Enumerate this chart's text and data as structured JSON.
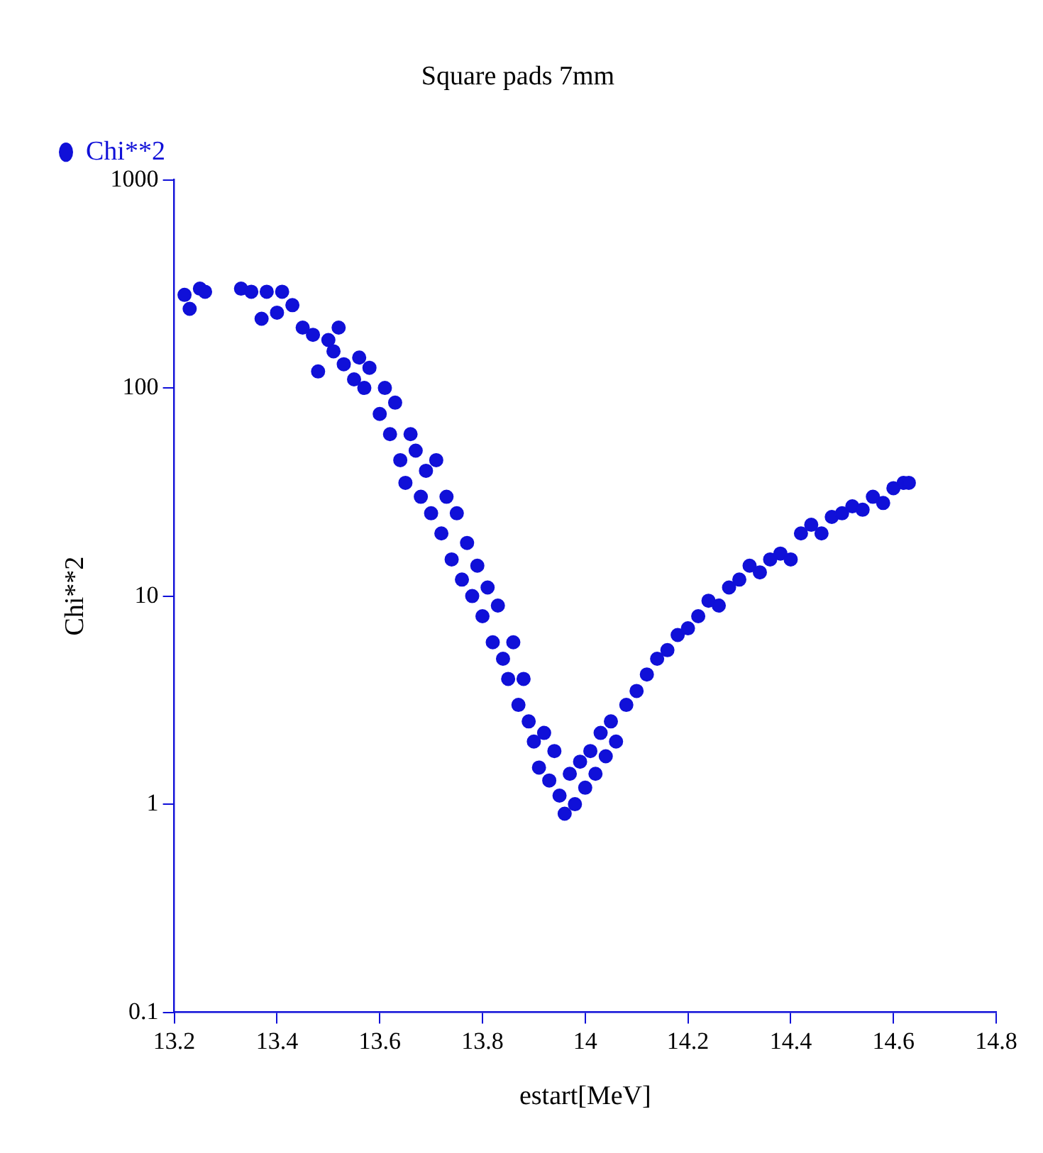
{
  "chart_data": {
    "type": "scatter",
    "title": "Square pads 7mm",
    "xlabel": "estart[MeV]",
    "ylabel": "Chi**2",
    "log": "y",
    "legend": "top left",
    "marker": "circle",
    "grid": false,
    "xlim": [
      13.2,
      14.8
    ],
    "xticks": [
      13.2,
      13.4,
      13.6,
      13.8,
      14,
      14.2,
      14.4,
      14.6,
      14.8
    ],
    "ylim": [
      0.1,
      1000
    ],
    "yticks": [
      0.1,
      1,
      10,
      100,
      1000
    ],
    "series": [
      {
        "name": "Chi**2",
        "color": "#1010d8",
        "x": [
          13.22,
          13.23,
          13.25,
          13.26,
          13.33,
          13.35,
          13.37,
          13.38,
          13.4,
          13.41,
          13.43,
          13.45,
          13.47,
          13.48,
          13.5,
          13.51,
          13.52,
          13.53,
          13.55,
          13.56,
          13.57,
          13.58,
          13.6,
          13.61,
          13.62,
          13.63,
          13.64,
          13.65,
          13.66,
          13.67,
          13.68,
          13.69,
          13.7,
          13.71,
          13.72,
          13.73,
          13.74,
          13.75,
          13.76,
          13.77,
          13.78,
          13.79,
          13.8,
          13.81,
          13.82,
          13.83,
          13.84,
          13.85,
          13.86,
          13.87,
          13.88,
          13.89,
          13.9,
          13.91,
          13.92,
          13.93,
          13.94,
          13.95,
          13.96,
          13.97,
          13.98,
          13.99,
          14,
          14.01,
          14.02,
          14.03,
          14.04,
          14.05,
          14.06,
          14.08,
          14.1,
          14.12,
          14.14,
          14.16,
          14.18,
          14.2,
          14.22,
          14.24,
          14.26,
          14.28,
          14.3,
          14.32,
          14.34,
          14.36,
          14.38,
          14.4,
          14.42,
          14.44,
          14.46,
          14.48,
          14.5,
          14.52,
          14.54,
          14.56,
          14.58,
          14.6,
          14.62,
          14.63
        ],
        "values": [
          280,
          240,
          300,
          290,
          300,
          290,
          215,
          290,
          230,
          290,
          250,
          195,
          180,
          120,
          170,
          150,
          195,
          130,
          110,
          140,
          100,
          125,
          75,
          100,
          60,
          85,
          45,
          35,
          60,
          50,
          30,
          40,
          25,
          45,
          20,
          30,
          15,
          25,
          12,
          18,
          10,
          14,
          8,
          11,
          6,
          9,
          5,
          4,
          6,
          3,
          4,
          2.5,
          2,
          1.5,
          2.2,
          1.3,
          1.8,
          1.1,
          0.9,
          1.4,
          1,
          1.6,
          1.2,
          1.8,
          1.4,
          2.2,
          1.7,
          2.5,
          2,
          3,
          3.5,
          4.2,
          5,
          5.5,
          6.5,
          7,
          8,
          9.5,
          9,
          11,
          12,
          14,
          13,
          15,
          16,
          15,
          20,
          22,
          20,
          24,
          25,
          27,
          26,
          30,
          28,
          33,
          35,
          35
        ]
      }
    ]
  }
}
